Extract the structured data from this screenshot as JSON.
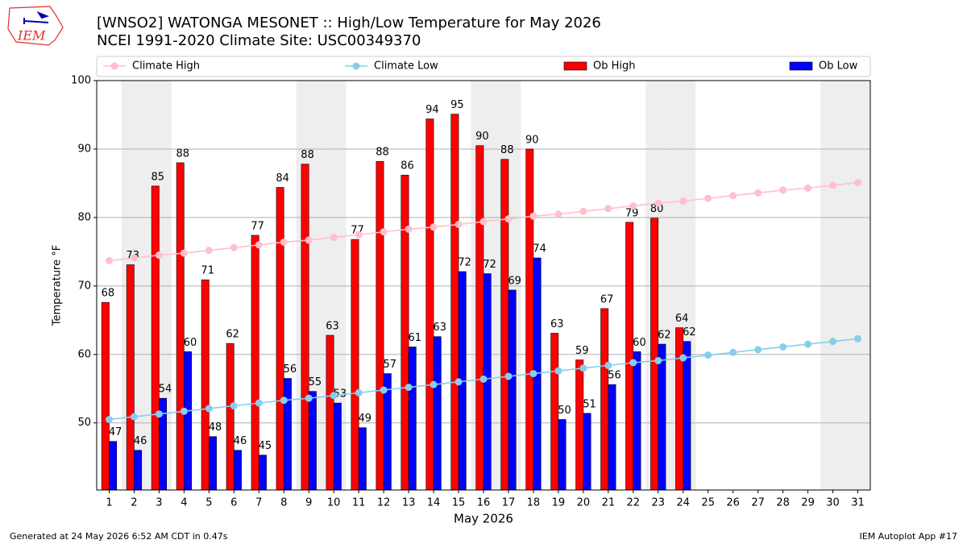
{
  "chart_data": {
    "type": "bar",
    "title": "[WNSO2] WATONGA MESONET :: High/Low Temperature for May 2026",
    "subtitle": "NCEI 1991-2020 Climate Site: USC00349370",
    "logo": "IEM",
    "x_label": "May 2026",
    "y_label": "Temperature °F",
    "footer_left": "Generated at 24 May 2026 6:52 AM CDT in 0.47s",
    "footer_right": "IEM Autoplot App #17",
    "categories": [
      "1",
      "2",
      "3",
      "4",
      "5",
      "6",
      "7",
      "8",
      "9",
      "10",
      "11",
      "12",
      "13",
      "14",
      "15",
      "16",
      "17",
      "18",
      "19",
      "20",
      "21",
      "22",
      "23",
      "24",
      "25",
      "26",
      "27",
      "28",
      "29",
      "30",
      "31"
    ],
    "shaded_categories": [
      "2",
      "3",
      "9",
      "10",
      "16",
      "17",
      "23",
      "24",
      "30",
      "31"
    ],
    "ylim": [
      40.2,
      100
    ],
    "yticks": [
      50,
      60,
      70,
      80,
      90,
      100
    ],
    "grid": true,
    "legend": "top",
    "series": [
      {
        "name": "Climate High",
        "type": "line",
        "color": "#ffc0cb",
        "values": [
          73.7,
          74.1,
          74.5,
          74.8,
          75.2,
          75.6,
          76.0,
          76.4,
          76.7,
          77.1,
          77.5,
          77.9,
          78.3,
          78.6,
          79.0,
          79.4,
          79.8,
          80.2,
          80.5,
          80.9,
          81.3,
          81.7,
          82.1,
          82.4,
          82.8,
          83.2,
          83.6,
          84.0,
          84.3,
          84.7,
          85.1
        ]
      },
      {
        "name": "Climate Low",
        "type": "line",
        "color": "#87ceeb",
        "values": [
          50.5,
          50.9,
          51.3,
          51.7,
          52.1,
          52.5,
          52.9,
          53.3,
          53.6,
          54.0,
          54.4,
          54.8,
          55.2,
          55.6,
          56.0,
          56.4,
          56.8,
          57.2,
          57.6,
          58.0,
          58.4,
          58.8,
          59.1,
          59.5,
          59.9,
          60.3,
          60.7,
          61.1,
          61.5,
          61.9,
          62.3
        ]
      },
      {
        "name": "Ob High",
        "type": "bar",
        "color": "#ff0000",
        "values": [
          67.6,
          73.1,
          84.6,
          88.0,
          70.9,
          61.6,
          77.4,
          84.4,
          87.8,
          62.8,
          76.8,
          88.2,
          86.2,
          94.4,
          95.1,
          90.5,
          88.5,
          90.0,
          63.1,
          59.2,
          66.7,
          79.3,
          79.9,
          63.9,
          null,
          null,
          null,
          null,
          null,
          null,
          null
        ],
        "value_labels": [
          "68",
          "73",
          "85",
          "88",
          "71",
          "62",
          "77",
          "84",
          "88",
          "63",
          "77",
          "88",
          "86",
          "94",
          "95",
          "90",
          "88",
          "90",
          "63",
          "59",
          "67",
          "79",
          "80",
          "64",
          null,
          null,
          null,
          null,
          null,
          null,
          null
        ]
      },
      {
        "name": "Ob Low",
        "type": "bar",
        "color": "#0000ff",
        "values": [
          47.3,
          46.0,
          53.6,
          60.4,
          48.0,
          46.0,
          45.3,
          56.5,
          54.6,
          52.9,
          49.3,
          57.2,
          61.1,
          62.6,
          72.1,
          71.8,
          69.4,
          74.1,
          50.5,
          51.4,
          55.6,
          60.4,
          61.5,
          61.9,
          null,
          null,
          null,
          null,
          null,
          null,
          null
        ],
        "value_labels": [
          "47",
          "46",
          "54",
          "60",
          "48",
          "46",
          "45",
          "56",
          "55",
          "53",
          "49",
          "57",
          "61",
          "63",
          "72",
          "72",
          "69",
          "74",
          "50",
          "51",
          "56",
          "60",
          "62",
          "62",
          null,
          null,
          null,
          null,
          null,
          null,
          null
        ]
      }
    ]
  }
}
